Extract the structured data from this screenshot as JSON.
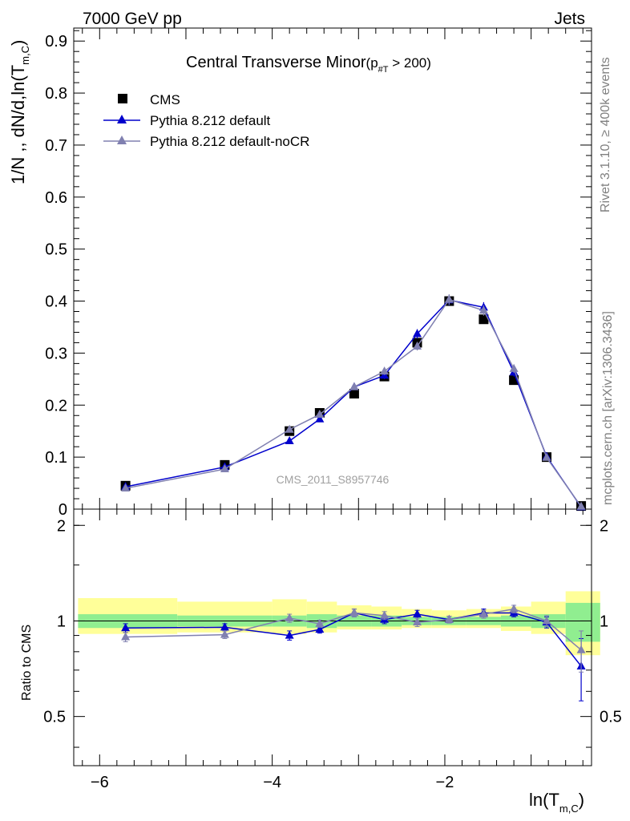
{
  "header": {
    "left": "7000 GeV pp",
    "right": "Jets"
  },
  "side_labels": {
    "rivet": "Rivet 3.1.10, ≥ 400k events",
    "mcplots": "mcplots.cern.ch [arXiv:1306.3436]"
  },
  "chart_data": {
    "type": "line",
    "title": "Central Transverse Minor",
    "title_cut": "(p",
    "title_cut_sub": "#T",
    "title_cut_tail": "  > 200)",
    "watermark": "CMS_2011_S8957746",
    "ylabel": "1/N ,, dN/d,ln(T",
    "ylabel_sub": "m,C",
    "ylabel_tail": ")",
    "xlabel": "ln(T",
    "xlabel_sub": "m,C",
    "xlabel_tail": ")",
    "ratio_ylabel": "Ratio to CMS",
    "xlim": [
      -6.3,
      -0.3
    ],
    "ylim": [
      0,
      0.925
    ],
    "ratio_ylim": [
      0.35,
      2.25
    ],
    "x_ticks": [
      -6,
      -4,
      -2
    ],
    "x_tick_labels": [
      "−6",
      "−4",
      "−2"
    ],
    "y_ticks": [
      0,
      0.1,
      0.2,
      0.3,
      0.4,
      0.5,
      0.6,
      0.7,
      0.8,
      0.9
    ],
    "y_tick_labels": [
      "0",
      "0.1",
      "0.2",
      "0.3",
      "0.4",
      "0.5",
      "0.6",
      "0.7",
      "0.8",
      "0.9"
    ],
    "ratio_ticks": [
      0.5,
      1,
      2
    ],
    "ratio_tick_labels": [
      "0.5",
      "1",
      "2"
    ],
    "legend_position": "top-left",
    "bin_edges": [
      -6.25,
      -5.1,
      -4.0,
      -3.6,
      -3.25,
      -2.85,
      -2.5,
      -2.15,
      -1.75,
      -1.35,
      -1.0,
      -0.6,
      -0.2
    ],
    "band_inner": [
      [
        0.95,
        1.05
      ],
      [
        0.96,
        1.04
      ],
      [
        0.96,
        1.04
      ],
      [
        0.95,
        1.05
      ],
      [
        0.96,
        1.04
      ],
      [
        0.96,
        1.04
      ],
      [
        0.97,
        1.03
      ],
      [
        0.97,
        1.03
      ],
      [
        0.97,
        1.03
      ],
      [
        0.96,
        1.04
      ],
      [
        0.95,
        1.05
      ],
      [
        0.86,
        1.14
      ]
    ],
    "band_outer": [
      [
        0.91,
        1.18
      ],
      [
        0.92,
        1.15
      ],
      [
        0.91,
        1.17
      ],
      [
        0.92,
        1.15
      ],
      [
        0.94,
        1.12
      ],
      [
        0.94,
        1.11
      ],
      [
        0.95,
        1.09
      ],
      [
        0.95,
        1.08
      ],
      [
        0.95,
        1.09
      ],
      [
        0.93,
        1.11
      ],
      [
        0.91,
        1.15
      ],
      [
        0.78,
        1.24
      ]
    ],
    "series": [
      {
        "name": "CMS",
        "color": "#000000",
        "marker": "square",
        "x": [
          -5.7,
          -4.55,
          -3.8,
          -3.45,
          -3.05,
          -2.7,
          -2.32,
          -1.95,
          -1.55,
          -1.2,
          -0.82,
          -0.42
        ],
        "y": [
          0.045,
          0.085,
          0.15,
          0.185,
          0.222,
          0.255,
          0.32,
          0.4,
          0.365,
          0.248,
          0.1,
          0.006
        ],
        "yerr": [
          0.003,
          0.004,
          0.005,
          0.006,
          0.006,
          0.006,
          0.007,
          0.008,
          0.008,
          0.007,
          0.004,
          0.001
        ]
      },
      {
        "name": "Pythia 8.212 default",
        "color": "#0000cc",
        "marker": "triangle",
        "x": [
          -5.7,
          -4.55,
          -3.8,
          -3.45,
          -3.05,
          -2.7,
          -2.32,
          -1.95,
          -1.55,
          -1.2,
          -0.82,
          -0.42
        ],
        "y": [
          0.043,
          0.081,
          0.131,
          0.173,
          0.235,
          0.257,
          0.337,
          0.402,
          0.388,
          0.263,
          0.101,
          0.004
        ],
        "yerr": [
          0.002,
          0.003,
          0.004,
          0.005,
          0.006,
          0.007,
          0.009,
          0.01,
          0.01,
          0.008,
          0.004,
          0.001
        ],
        "ratio": [
          0.95,
          0.955,
          0.9,
          0.94,
          1.06,
          1.01,
          1.05,
          1.01,
          1.06,
          1.06,
          0.99,
          0.72
        ],
        "ratio_err": [
          0.03,
          0.025,
          0.03,
          0.025,
          0.03,
          0.03,
          0.03,
          0.025,
          0.03,
          0.03,
          0.04,
          0.16
        ]
      },
      {
        "name": "Pythia 8.212 default-noCR",
        "color": "#8080b0",
        "marker": "triangle",
        "x": [
          -5.7,
          -4.55,
          -3.8,
          -3.45,
          -3.05,
          -2.7,
          -2.32,
          -1.95,
          -1.55,
          -1.2,
          -0.82,
          -0.42
        ],
        "y": [
          0.04,
          0.077,
          0.153,
          0.182,
          0.235,
          0.265,
          0.313,
          0.403,
          0.382,
          0.27,
          0.099,
          0.005
        ],
        "yerr": [
          0.002,
          0.003,
          0.004,
          0.005,
          0.006,
          0.007,
          0.008,
          0.01,
          0.01,
          0.008,
          0.004,
          0.001
        ],
        "ratio": [
          0.89,
          0.905,
          1.02,
          0.98,
          1.06,
          1.04,
          0.99,
          1.01,
          1.05,
          1.09,
          1.0,
          0.81
        ],
        "ratio_err": [
          0.03,
          0.025,
          0.03,
          0.025,
          0.03,
          0.03,
          0.03,
          0.025,
          0.03,
          0.03,
          0.04,
          0.12
        ]
      }
    ]
  }
}
